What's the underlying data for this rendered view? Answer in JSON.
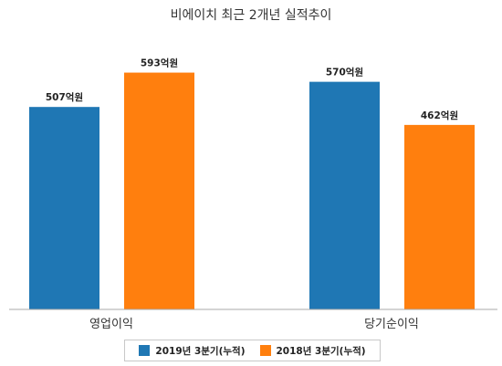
{
  "chart_data": {
    "type": "bar",
    "title": "비에이치 최근 2개년 실적추이",
    "xlabel": "",
    "ylabel": "",
    "categories": [
      "영업이익",
      "당기순이익"
    ],
    "unit": "억원",
    "ylim": [
      0,
      640
    ],
    "grid": false,
    "legend_position": "bottom",
    "series": [
      {
        "name": "2019년 3분기(누적)",
        "color": "#1f77b4",
        "values": [
          507,
          570
        ],
        "labels": [
          "507억원",
          "570억원"
        ]
      },
      {
        "name": "2018년 3분기(누적)",
        "color": "#ff7f0e",
        "values": [
          593,
          462
        ],
        "labels": [
          "593억원",
          "462억원"
        ]
      }
    ]
  }
}
